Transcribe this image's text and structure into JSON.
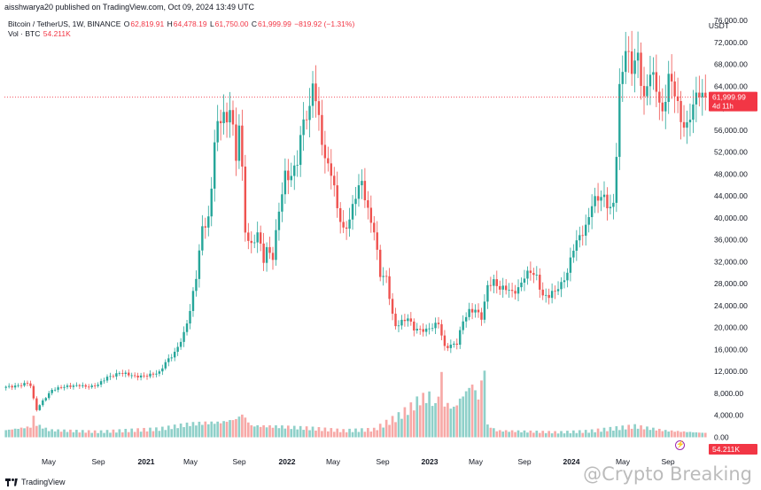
{
  "header": {
    "published_line": "aisshwarya20 published on TradingView.com, Oct 09, 2024 13:49 UTC"
  },
  "legend": {
    "symbol": "Bitcoin / TetherUS, 1W, BINANCE",
    "o_label": "O",
    "o_value": "62,819.91",
    "h_label": "H",
    "h_value": "64,478.19",
    "l_label": "L",
    "l_value": "61,750.00",
    "c_label": "C",
    "c_value": "61,999.99",
    "change": "−819.92 (−1.31%)",
    "vol_label": "Vol · BTC",
    "vol_value": "54.211K"
  },
  "currency": "USDT",
  "price_tag": {
    "price": "61,999.99",
    "countdown": "4d 11h"
  },
  "volume_tag": "54.211K",
  "footer": {
    "brand": "TradingView"
  },
  "watermark": "@Crypto Breaking",
  "colors": {
    "up": "#26a69a",
    "down": "#ef5350",
    "last_line": "#f23645",
    "volume_up": "#8fd0c9",
    "volume_down": "#f7a9a7"
  },
  "chart_data": {
    "type": "candlestick",
    "series_name": "Bitcoin / TetherUS, 1W, BINANCE",
    "ylim": [
      0,
      78000
    ],
    "y_ticks": [
      "76,000.00",
      "72,000.00",
      "68,000.00",
      "64,000.00",
      "60,000.00",
      "56,000.00",
      "52,000.00",
      "48,000.00",
      "44,000.00",
      "40,000.00",
      "36,000.00",
      "32,000.00",
      "28,000.00",
      "24,000.00",
      "20,000.00",
      "16,000.00",
      "12,000.00",
      "8,000.00",
      "4,000.00",
      "0.00"
    ],
    "x_ticks": [
      "May",
      "Sep",
      "2021",
      "May",
      "Sep",
      "2022",
      "May",
      "Sep",
      "2023",
      "May",
      "Sep",
      "2024",
      "May",
      "Sep"
    ],
    "last_price": 61999.99,
    "close_anchors": [
      [
        0,
        9200
      ],
      [
        5,
        9600
      ],
      [
        7,
        9800
      ],
      [
        8,
        9300
      ],
      [
        9,
        6900
      ],
      [
        10,
        5000
      ],
      [
        12,
        6700
      ],
      [
        15,
        8700
      ],
      [
        20,
        9200
      ],
      [
        24,
        9600
      ],
      [
        26,
        9300
      ],
      [
        28,
        9200
      ],
      [
        30,
        9500
      ],
      [
        33,
        11000
      ],
      [
        37,
        11800
      ],
      [
        42,
        11000
      ],
      [
        47,
        11500
      ],
      [
        50,
        11700
      ],
      [
        52,
        13500
      ],
      [
        55,
        15500
      ],
      [
        58,
        19000
      ],
      [
        60,
        23000
      ],
      [
        62,
        29000
      ],
      [
        64,
        38000
      ],
      [
        66,
        40000
      ],
      [
        67,
        46000
      ],
      [
        68,
        55000
      ],
      [
        69,
        57000
      ],
      [
        70,
        58000
      ],
      [
        71,
        59000
      ],
      [
        72,
        56000
      ],
      [
        73,
        60000
      ],
      [
        74,
        56000
      ],
      [
        75,
        50000
      ],
      [
        76,
        58000
      ],
      [
        77,
        49000
      ],
      [
        78,
        38000
      ],
      [
        80,
        35000
      ],
      [
        82,
        37000
      ],
      [
        84,
        32000
      ],
      [
        85,
        34000
      ],
      [
        87,
        33000
      ],
      [
        89,
        42000
      ],
      [
        91,
        48000
      ],
      [
        93,
        47000
      ],
      [
        95,
        50000
      ],
      [
        97,
        58000
      ],
      [
        99,
        60000
      ],
      [
        100,
        66000
      ],
      [
        102,
        58000
      ],
      [
        104,
        50000
      ],
      [
        106,
        48000
      ],
      [
        108,
        42000
      ],
      [
        110,
        38000
      ],
      [
        112,
        40000
      ],
      [
        114,
        44000
      ],
      [
        116,
        46000
      ],
      [
        118,
        41000
      ],
      [
        120,
        38000
      ],
      [
        122,
        30000
      ],
      [
        124,
        29000
      ],
      [
        126,
        22000
      ],
      [
        127,
        20000
      ],
      [
        129,
        21000
      ],
      [
        131,
        22000
      ],
      [
        133,
        20000
      ],
      [
        135,
        19500
      ],
      [
        137,
        19300
      ],
      [
        139,
        20000
      ],
      [
        141,
        21000
      ],
      [
        143,
        16600
      ],
      [
        145,
        16800
      ],
      [
        147,
        17000
      ],
      [
        149,
        21000
      ],
      [
        151,
        23000
      ],
      [
        153,
        23500
      ],
      [
        155,
        22000
      ],
      [
        156,
        24500
      ],
      [
        157,
        27500
      ],
      [
        159,
        28000
      ],
      [
        161,
        27000
      ],
      [
        163,
        27500
      ],
      [
        165,
        26700
      ],
      [
        167,
        27000
      ],
      [
        169,
        29000
      ],
      [
        171,
        30000
      ],
      [
        173,
        29300
      ],
      [
        175,
        26000
      ],
      [
        177,
        26000
      ],
      [
        179,
        26500
      ],
      [
        181,
        27500
      ],
      [
        183,
        30000
      ],
      [
        185,
        35000
      ],
      [
        187,
        37000
      ],
      [
        189,
        38000
      ],
      [
        191,
        42000
      ],
      [
        193,
        43500
      ],
      [
        195,
        44000
      ],
      [
        197,
        42000
      ],
      [
        198,
        43000
      ],
      [
        199,
        52000
      ],
      [
        200,
        63000
      ],
      [
        202,
        70000
      ],
      [
        204,
        67000
      ],
      [
        206,
        70000
      ],
      [
        208,
        62000
      ],
      [
        210,
        67000
      ],
      [
        212,
        63000
      ],
      [
        214,
        58000
      ],
      [
        216,
        66000
      ],
      [
        218,
        64000
      ],
      [
        220,
        58000
      ],
      [
        222,
        56000
      ],
      [
        224,
        60000
      ],
      [
        226,
        63000
      ],
      [
        228,
        62000
      ]
    ],
    "volume_anchors": [
      [
        0,
        1.3
      ],
      [
        8,
        1.9
      ],
      [
        9,
        3.6
      ],
      [
        10,
        2.3
      ],
      [
        14,
        1.3
      ],
      [
        30,
        1.0
      ],
      [
        50,
        1.5
      ],
      [
        60,
        2.4
      ],
      [
        65,
        2.6
      ],
      [
        70,
        2.7
      ],
      [
        75,
        3.3
      ],
      [
        77,
        4.2
      ],
      [
        80,
        2.1
      ],
      [
        90,
        1.9
      ],
      [
        100,
        1.6
      ],
      [
        110,
        1.2
      ],
      [
        120,
        1.4
      ],
      [
        124,
        2.6
      ],
      [
        128,
        3.8
      ],
      [
        132,
        5.4
      ],
      [
        135,
        6.9
      ],
      [
        138,
        7.4
      ],
      [
        140,
        5.6
      ],
      [
        142,
        10.9
      ],
      [
        143,
        6.1
      ],
      [
        146,
        5.3
      ],
      [
        149,
        7.6
      ],
      [
        152,
        9.7
      ],
      [
        154,
        7.1
      ],
      [
        156,
        12.8
      ],
      [
        157,
        2.2
      ],
      [
        160,
        1.2
      ],
      [
        180,
        0.9
      ],
      [
        190,
        1.1
      ],
      [
        200,
        1.7
      ],
      [
        205,
        2.0
      ],
      [
        215,
        1.2
      ],
      [
        228,
        0.8
      ]
    ]
  }
}
